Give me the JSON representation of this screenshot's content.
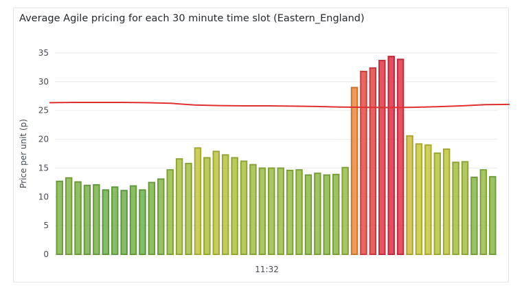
{
  "chart_data": {
    "type": "bar",
    "title": "Average Agile pricing for each 30 minute time slot (Eastern_England)",
    "ylabel": "Price per unit (p)",
    "xlabel": "",
    "x_tick_labels": [
      {
        "index": 22.5,
        "label": "11:32"
      }
    ],
    "ylim": [
      0,
      35
    ],
    "yticks": [
      0,
      5,
      10,
      15,
      20,
      25,
      30,
      35
    ],
    "grid": true,
    "values": [
      12.8,
      13.4,
      12.7,
      12.1,
      12.2,
      11.3,
      11.8,
      11.2,
      12.0,
      11.3,
      12.6,
      13.2,
      14.8,
      16.7,
      15.9,
      18.6,
      16.9,
      18.0,
      17.4,
      16.9,
      16.3,
      15.7,
      15.1,
      15.1,
      15.1,
      14.7,
      14.8,
      13.9,
      14.2,
      13.9,
      14.0,
      15.2,
      29.1,
      31.9,
      32.5,
      33.8,
      34.5,
      34.0,
      20.7,
      19.3,
      19.1,
      17.7,
      18.4,
      16.1,
      16.2,
      13.5,
      14.8,
      13.6
    ],
    "series": [
      {
        "name": "",
        "type": "line",
        "values": [
          26.35,
          26.4,
          26.4,
          26.4,
          26.35,
          26.25,
          25.95,
          25.85,
          25.8,
          25.8,
          25.75,
          25.7,
          25.6,
          25.55,
          25.5,
          25.55,
          25.65,
          25.8,
          26.0,
          26.05
        ],
        "color": "#e02f2f"
      }
    ],
    "colors": {
      "low": "#6ab04c",
      "mid": "#c6c93c",
      "high": "#e84a4a",
      "top": "#e02f44",
      "orange": "#ee8a3a",
      "grid": "#e9ebee"
    }
  }
}
